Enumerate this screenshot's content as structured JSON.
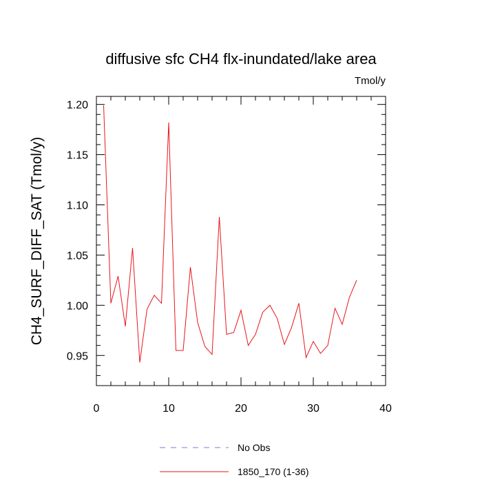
{
  "chart_data": {
    "type": "line",
    "title": "diffusive sfc CH4 flx-inundated/lake area",
    "units_label": "Tmol/y",
    "xlabel": "",
    "ylabel": "CH4_SURF_DIFF_SAT  (Tmol/y)",
    "xlim": [
      0,
      40
    ],
    "ylim": [
      0.92,
      1.208
    ],
    "grid": false,
    "x_major_ticks": [
      0,
      10,
      20,
      30,
      40
    ],
    "x_tick_labels": [
      "0",
      "10",
      "20",
      "30",
      "40"
    ],
    "y_major_ticks": [
      0.95,
      1.0,
      1.05,
      1.1,
      1.15,
      1.2
    ],
    "y_tick_labels": [
      "0.95",
      "1.00",
      "1.05",
      "1.10",
      "1.15",
      "1.20"
    ],
    "legend_position": "bottom",
    "series": [
      {
        "name": "No Obs",
        "color": "#7b7bd6",
        "dash": "dashed",
        "x": [],
        "values": []
      },
      {
        "name": "1850_170 (1-36)",
        "color": "#e8141a",
        "dash": "solid",
        "x": [
          1,
          2,
          3,
          4,
          5,
          6,
          7,
          8,
          9,
          10,
          11,
          12,
          13,
          14,
          15,
          16,
          17,
          18,
          19,
          20,
          21,
          22,
          23,
          24,
          25,
          26,
          27,
          28,
          29,
          30,
          31,
          32,
          33,
          34,
          35,
          36
        ],
        "values": [
          1.199,
          1.002,
          1.029,
          0.979,
          1.057,
          0.943,
          0.996,
          1.01,
          1.002,
          1.182,
          0.955,
          0.955,
          1.038,
          0.983,
          0.959,
          0.951,
          1.088,
          0.971,
          0.973,
          0.995,
          0.96,
          0.971,
          0.993,
          1.0,
          0.987,
          0.961,
          0.978,
          1.002,
          0.948,
          0.964,
          0.952,
          0.96,
          0.997,
          0.981,
          1.008,
          1.025
        ]
      }
    ]
  }
}
